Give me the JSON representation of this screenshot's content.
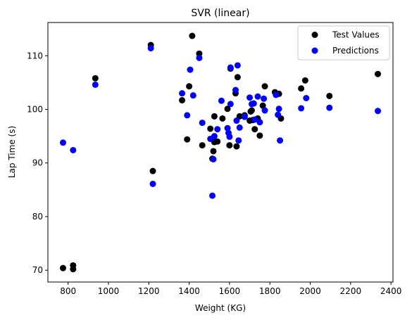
{
  "chart_data": {
    "type": "scatter",
    "title": "SVR (linear)",
    "xlabel": "Weight (KG)",
    "ylabel": "Lap Time (s)",
    "xlim": [
      700,
      2410
    ],
    "ylim": [
      67.8,
      116.2
    ],
    "xticks": [
      800,
      1000,
      1200,
      1400,
      1600,
      1800,
      2000,
      2200,
      2400
    ],
    "yticks": [
      70,
      80,
      90,
      100,
      110
    ],
    "grid": false,
    "legend_position": "top-right",
    "series": [
      {
        "name": "Test Values",
        "color": "#000000",
        "points": [
          [
            775,
            70.4
          ],
          [
            825,
            70.9
          ],
          [
            825,
            70.2
          ],
          [
            935,
            105.8
          ],
          [
            1210,
            112.0
          ],
          [
            1220,
            88.5
          ],
          [
            1365,
            101.7
          ],
          [
            1390,
            94.4
          ],
          [
            1400,
            104.3
          ],
          [
            1415,
            113.7
          ],
          [
            1450,
            110.4
          ],
          [
            1465,
            93.3
          ],
          [
            1505,
            96.4
          ],
          [
            1515,
            90.8
          ],
          [
            1520,
            92.2
          ],
          [
            1525,
            98.7
          ],
          [
            1525,
            93.9
          ],
          [
            1540,
            94.0
          ],
          [
            1565,
            98.3
          ],
          [
            1590,
            100.1
          ],
          [
            1600,
            93.3
          ],
          [
            1605,
            107.6
          ],
          [
            1630,
            103.0
          ],
          [
            1635,
            93.1
          ],
          [
            1640,
            106.0
          ],
          [
            1650,
            98.7
          ],
          [
            1675,
            98.9
          ],
          [
            1700,
            97.9
          ],
          [
            1705,
            99.6
          ],
          [
            1710,
            99.8
          ],
          [
            1715,
            98.0
          ],
          [
            1725,
            96.3
          ],
          [
            1740,
            98.3
          ],
          [
            1750,
            95.1
          ],
          [
            1765,
            100.7
          ],
          [
            1775,
            104.3
          ],
          [
            1825,
            103.2
          ],
          [
            1845,
            102.9
          ],
          [
            1855,
            98.3
          ],
          [
            1955,
            103.9
          ],
          [
            1975,
            105.4
          ],
          [
            2095,
            102.5
          ],
          [
            2335,
            106.6
          ]
        ]
      },
      {
        "name": "Predictions",
        "color": "#0000ff",
        "points": [
          [
            775,
            93.8
          ],
          [
            825,
            92.4
          ],
          [
            935,
            104.6
          ],
          [
            1210,
            111.4
          ],
          [
            1220,
            86.1
          ],
          [
            1365,
            103.0
          ],
          [
            1390,
            98.9
          ],
          [
            1405,
            107.4
          ],
          [
            1420,
            102.6
          ],
          [
            1450,
            109.6
          ],
          [
            1465,
            97.5
          ],
          [
            1505,
            94.5
          ],
          [
            1515,
            83.9
          ],
          [
            1520,
            90.7
          ],
          [
            1525,
            95.0
          ],
          [
            1540,
            96.3
          ],
          [
            1560,
            101.6
          ],
          [
            1590,
            96.5
          ],
          [
            1595,
            95.6
          ],
          [
            1600,
            94.9
          ],
          [
            1605,
            101.0
          ],
          [
            1605,
            107.8
          ],
          [
            1630,
            103.6
          ],
          [
            1635,
            97.9
          ],
          [
            1640,
            108.2
          ],
          [
            1645,
            94.2
          ],
          [
            1650,
            96.6
          ],
          [
            1675,
            98.6
          ],
          [
            1700,
            102.2
          ],
          [
            1710,
            101.0
          ],
          [
            1720,
            101.1
          ],
          [
            1725,
            98.1
          ],
          [
            1740,
            102.4
          ],
          [
            1750,
            97.6
          ],
          [
            1770,
            102.0
          ],
          [
            1775,
            99.8
          ],
          [
            1830,
            102.7
          ],
          [
            1840,
            99.0
          ],
          [
            1845,
            100.1
          ],
          [
            1850,
            94.2
          ],
          [
            1955,
            100.2
          ],
          [
            1980,
            102.1
          ],
          [
            2095,
            100.3
          ],
          [
            2335,
            99.7
          ]
        ]
      }
    ]
  }
}
